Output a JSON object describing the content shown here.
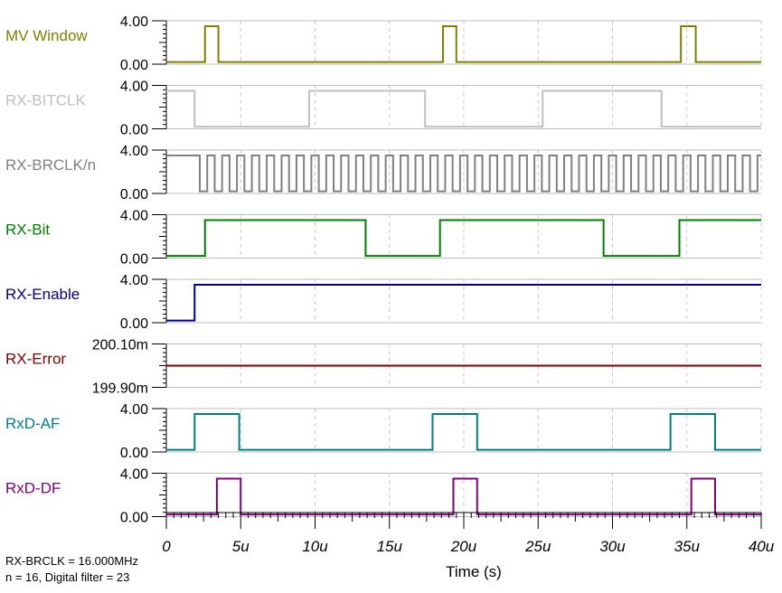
{
  "chart_data": {
    "type": "line",
    "subtype": "digital-timing-diagram",
    "xlabel": "Time (s)",
    "xlim": [
      0,
      40
    ],
    "x_ticks": [
      "0",
      "5u",
      "10u",
      "15u",
      "20u",
      "25u",
      "30u",
      "35u",
      "40u"
    ],
    "grid": true,
    "notes": [
      "RX-BRCLK = 16.000MHz",
      "n = 16, Digital filter = 23"
    ],
    "series": [
      {
        "name": "MV Window",
        "color": "#808000",
        "y_ticks": [
          "4.00",
          "0.00"
        ],
        "ylim": [
          0,
          4
        ],
        "low": 0.2,
        "high": 3.5,
        "waveform": [
          [
            0,
            0.2
          ],
          [
            2.6,
            0.2
          ],
          [
            2.6,
            3.5
          ],
          [
            3.5,
            3.5
          ],
          [
            3.5,
            0.2
          ],
          [
            18.6,
            0.2
          ],
          [
            18.6,
            3.5
          ],
          [
            19.5,
            3.5
          ],
          [
            19.5,
            0.2
          ],
          [
            34.6,
            0.2
          ],
          [
            34.6,
            3.5
          ],
          [
            35.6,
            3.5
          ],
          [
            35.6,
            0.2
          ],
          [
            40,
            0.2
          ]
        ]
      },
      {
        "name": "RX-BITCLK",
        "color": "#c0c0c0",
        "y_ticks": [
          "4.00",
          "0.00"
        ],
        "ylim": [
          0,
          4
        ],
        "low": 0.2,
        "high": 3.5,
        "waveform": [
          [
            0,
            3.5
          ],
          [
            1.9,
            3.5
          ],
          [
            1.9,
            0.2
          ],
          [
            9.6,
            0.2
          ],
          [
            9.6,
            3.5
          ],
          [
            17.4,
            3.5
          ],
          [
            17.4,
            0.2
          ],
          [
            25.3,
            0.2
          ],
          [
            25.3,
            3.5
          ],
          [
            33.3,
            3.5
          ],
          [
            33.3,
            0.2
          ],
          [
            40,
            0.2
          ]
        ]
      },
      {
        "name": "RX-BRCLK/n",
        "color": "#808080",
        "y_ticks": [
          "4.00",
          "0.00"
        ],
        "ylim": [
          0,
          4
        ],
        "low": 0.2,
        "high": 3.5,
        "clock": {
          "start": 2.25,
          "period": 1.0,
          "until": 40,
          "initial_high_from": 0
        }
      },
      {
        "name": "RX-Bit",
        "color": "#008000",
        "y_ticks": [
          "4.00",
          "0.00"
        ],
        "ylim": [
          0,
          4
        ],
        "low": 0.2,
        "high": 3.5,
        "waveform": [
          [
            0,
            0.2
          ],
          [
            2.6,
            0.2
          ],
          [
            2.6,
            3.5
          ],
          [
            13.4,
            3.5
          ],
          [
            13.4,
            0.2
          ],
          [
            18.4,
            0.2
          ],
          [
            18.4,
            3.5
          ],
          [
            29.4,
            3.5
          ],
          [
            29.4,
            0.2
          ],
          [
            34.5,
            0.2
          ],
          [
            34.5,
            3.5
          ],
          [
            40,
            3.5
          ]
        ]
      },
      {
        "name": "RX-Enable",
        "color": "#000080",
        "y_ticks": [
          "4.00",
          "0.00"
        ],
        "ylim": [
          0,
          4
        ],
        "low": 0.2,
        "high": 3.5,
        "waveform": [
          [
            0,
            0.2
          ],
          [
            1.9,
            0.2
          ],
          [
            1.9,
            3.5
          ],
          [
            40,
            3.5
          ]
        ]
      },
      {
        "name": "RX-Error",
        "color": "#800000",
        "y_ticks": [
          "200.10m",
          "199.90m"
        ],
        "ylim": [
          199.9,
          200.1
        ],
        "waveform": [
          [
            0,
            200.0
          ],
          [
            40,
            200.0
          ]
        ]
      },
      {
        "name": "RxD-AF",
        "color": "#008080",
        "y_ticks": [
          "4.00",
          "0.00"
        ],
        "ylim": [
          0,
          4
        ],
        "low": 0.2,
        "high": 3.5,
        "waveform": [
          [
            0,
            0.2
          ],
          [
            1.9,
            0.2
          ],
          [
            1.9,
            3.5
          ],
          [
            4.9,
            3.5
          ],
          [
            4.9,
            0.2
          ],
          [
            17.9,
            0.2
          ],
          [
            17.9,
            3.5
          ],
          [
            20.9,
            3.5
          ],
          [
            20.9,
            0.2
          ],
          [
            33.9,
            0.2
          ],
          [
            33.9,
            3.5
          ],
          [
            36.9,
            3.5
          ],
          [
            36.9,
            0.2
          ],
          [
            40,
            0.2
          ]
        ]
      },
      {
        "name": "RxD-DF",
        "color": "#800080",
        "y_ticks": [
          "4.00",
          "0.00"
        ],
        "ylim": [
          0,
          4
        ],
        "low": 0.2,
        "high": 3.5,
        "waveform": [
          [
            0,
            0.2
          ],
          [
            3.4,
            0.2
          ],
          [
            3.4,
            3.5
          ],
          [
            5.0,
            3.5
          ],
          [
            5.0,
            0.2
          ],
          [
            19.3,
            0.2
          ],
          [
            19.3,
            3.5
          ],
          [
            20.9,
            3.5
          ],
          [
            20.9,
            0.2
          ],
          [
            35.3,
            0.2
          ],
          [
            35.3,
            3.5
          ],
          [
            36.9,
            3.5
          ],
          [
            36.9,
            0.2
          ],
          [
            40,
            0.2
          ]
        ]
      }
    ]
  }
}
